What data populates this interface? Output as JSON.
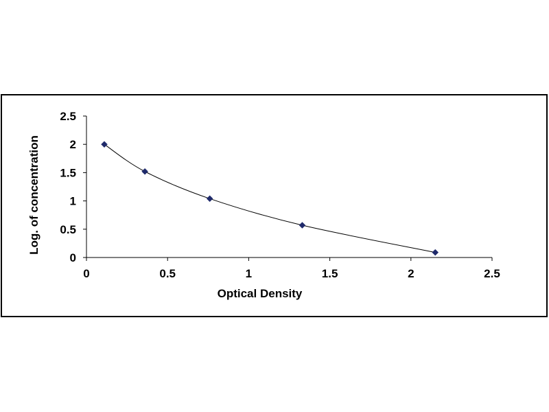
{
  "chart_data": {
    "type": "scatter",
    "title": "",
    "xlabel": "Optical Density",
    "ylabel": "Log. of concentration",
    "xlim": [
      0,
      2.5
    ],
    "ylim": [
      0,
      2.5
    ],
    "x_ticks": [
      "0",
      "0.5",
      "1",
      "1.5",
      "2",
      "2.5"
    ],
    "y_ticks": [
      "0",
      "0.5",
      "1",
      "1.5",
      "2",
      "2.5"
    ],
    "grid": false,
    "legend": "none",
    "marker_color": "#1f2a6b",
    "curve_color": "#000000",
    "series": [
      {
        "x": [
          0.11,
          0.36,
          0.76,
          1.33,
          2.15
        ],
        "y": [
          2.0,
          1.52,
          1.04,
          0.57,
          0.09
        ],
        "trendline": "fitted curve"
      }
    ]
  }
}
